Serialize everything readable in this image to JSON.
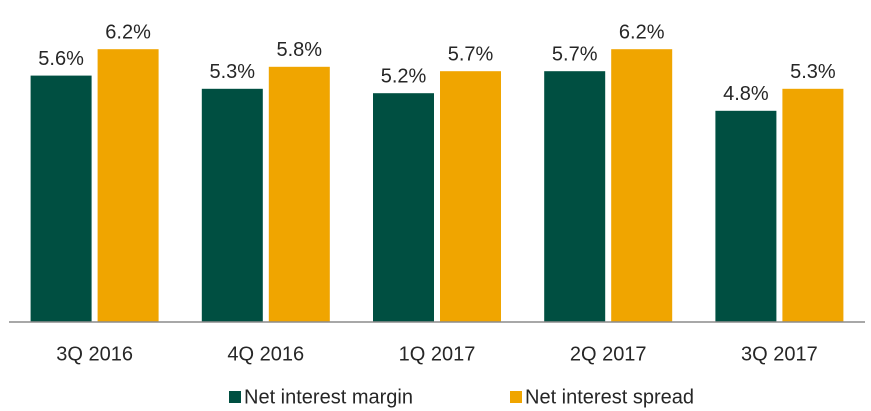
{
  "chart_data": {
    "type": "bar",
    "categories": [
      "3Q 2016",
      "4Q 2016",
      "1Q 2017",
      "2Q 2017",
      "3Q 2017"
    ],
    "series": [
      {
        "name": "Net interest margin",
        "color": "#004f41",
        "values": [
          5.6,
          5.3,
          5.2,
          5.7,
          4.8
        ],
        "value_labels": [
          "5.6%",
          "5.3%",
          "5.2%",
          "5.7%",
          "4.8%"
        ]
      },
      {
        "name": "Net interest spread",
        "color": "#f0a500",
        "values": [
          6.2,
          5.8,
          5.7,
          6.2,
          5.3
        ],
        "value_labels": [
          "6.2%",
          "5.8%",
          "5.7%",
          "6.2%",
          "5.3%"
        ]
      }
    ],
    "ylim": [
      0,
      7
    ],
    "legend": "bottom"
  }
}
